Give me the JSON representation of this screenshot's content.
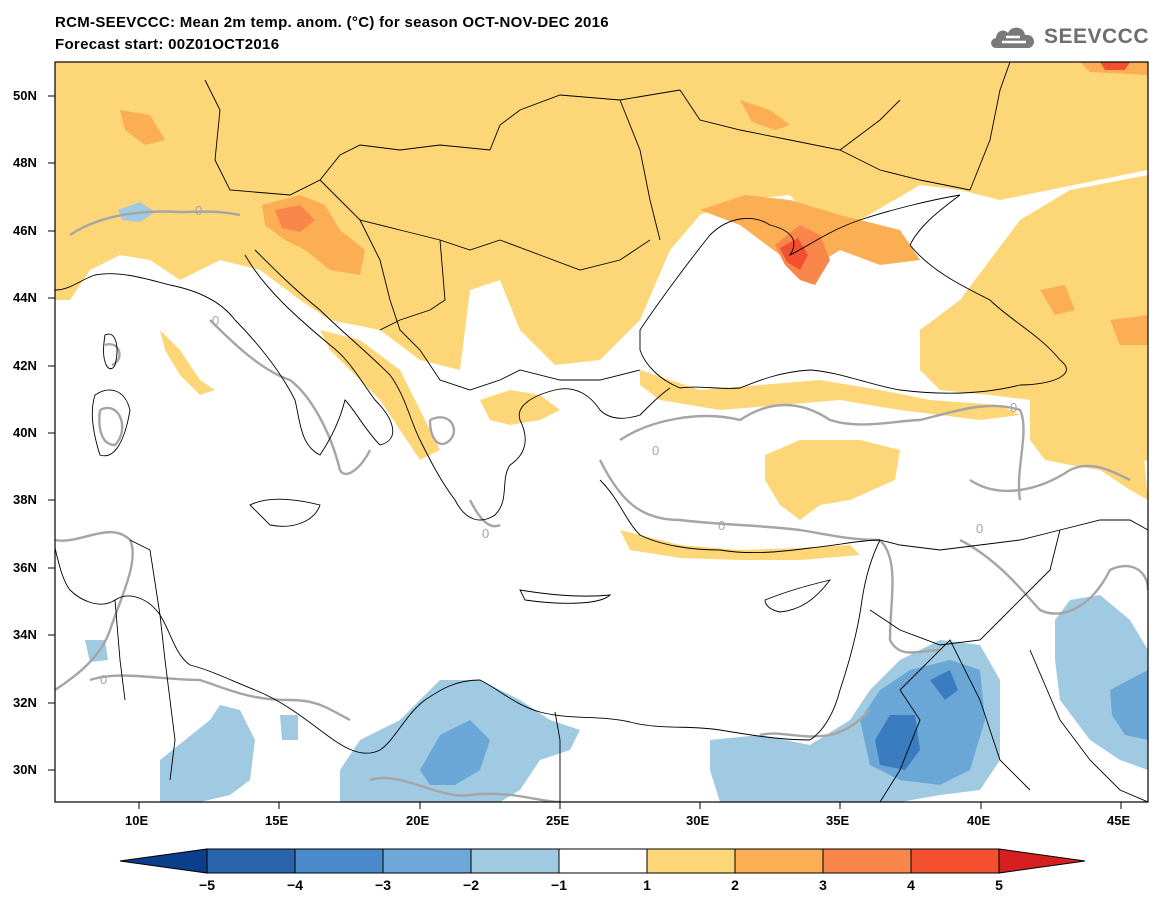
{
  "header": {
    "title_line1": "RCM-SEEVCCC: Mean 2m temp. anom. (°C) for season OCT-NOV-DEC 2016",
    "title_line2": "Forecast start: 00Z01OCT2016"
  },
  "logo": {
    "text": "SEEVCCC",
    "icon": "cloud-icon"
  },
  "map": {
    "lon_range": [
      7,
      46
    ],
    "lat_range": [
      29,
      51
    ],
    "lat_labels": [
      "50N",
      "48N",
      "46N",
      "44N",
      "42N",
      "40N",
      "38N",
      "36N",
      "34N",
      "32N",
      "30N"
    ],
    "lon_labels": [
      "10E",
      "15E",
      "20E",
      "25E",
      "30E",
      "35E",
      "40E",
      "45E"
    ],
    "contour_label": "0",
    "colors": {
      "sea": "#ffffff",
      "warm1": "#fdd677",
      "warm2": "#fcae55",
      "warm3": "#f9864a",
      "warm4": "#f2502f",
      "cool1": "#9fcae2",
      "cool2": "#6aa7d6",
      "cool3": "#3a7cc0",
      "contour": "#a5a5a5",
      "border": "#000000"
    }
  },
  "colorbar": {
    "labels": [
      "-5",
      "-4",
      "-3",
      "-2",
      "-1",
      "1",
      "2",
      "3",
      "4",
      "5"
    ],
    "colors": [
      "#0b3f8c",
      "#2a64ad",
      "#4a8ccb",
      "#6ea8d8",
      "#9fcae2",
      "#ffffff",
      "#fdd677",
      "#fcae55",
      "#f9864a",
      "#f2502f",
      "#d61f1f"
    ]
  }
}
